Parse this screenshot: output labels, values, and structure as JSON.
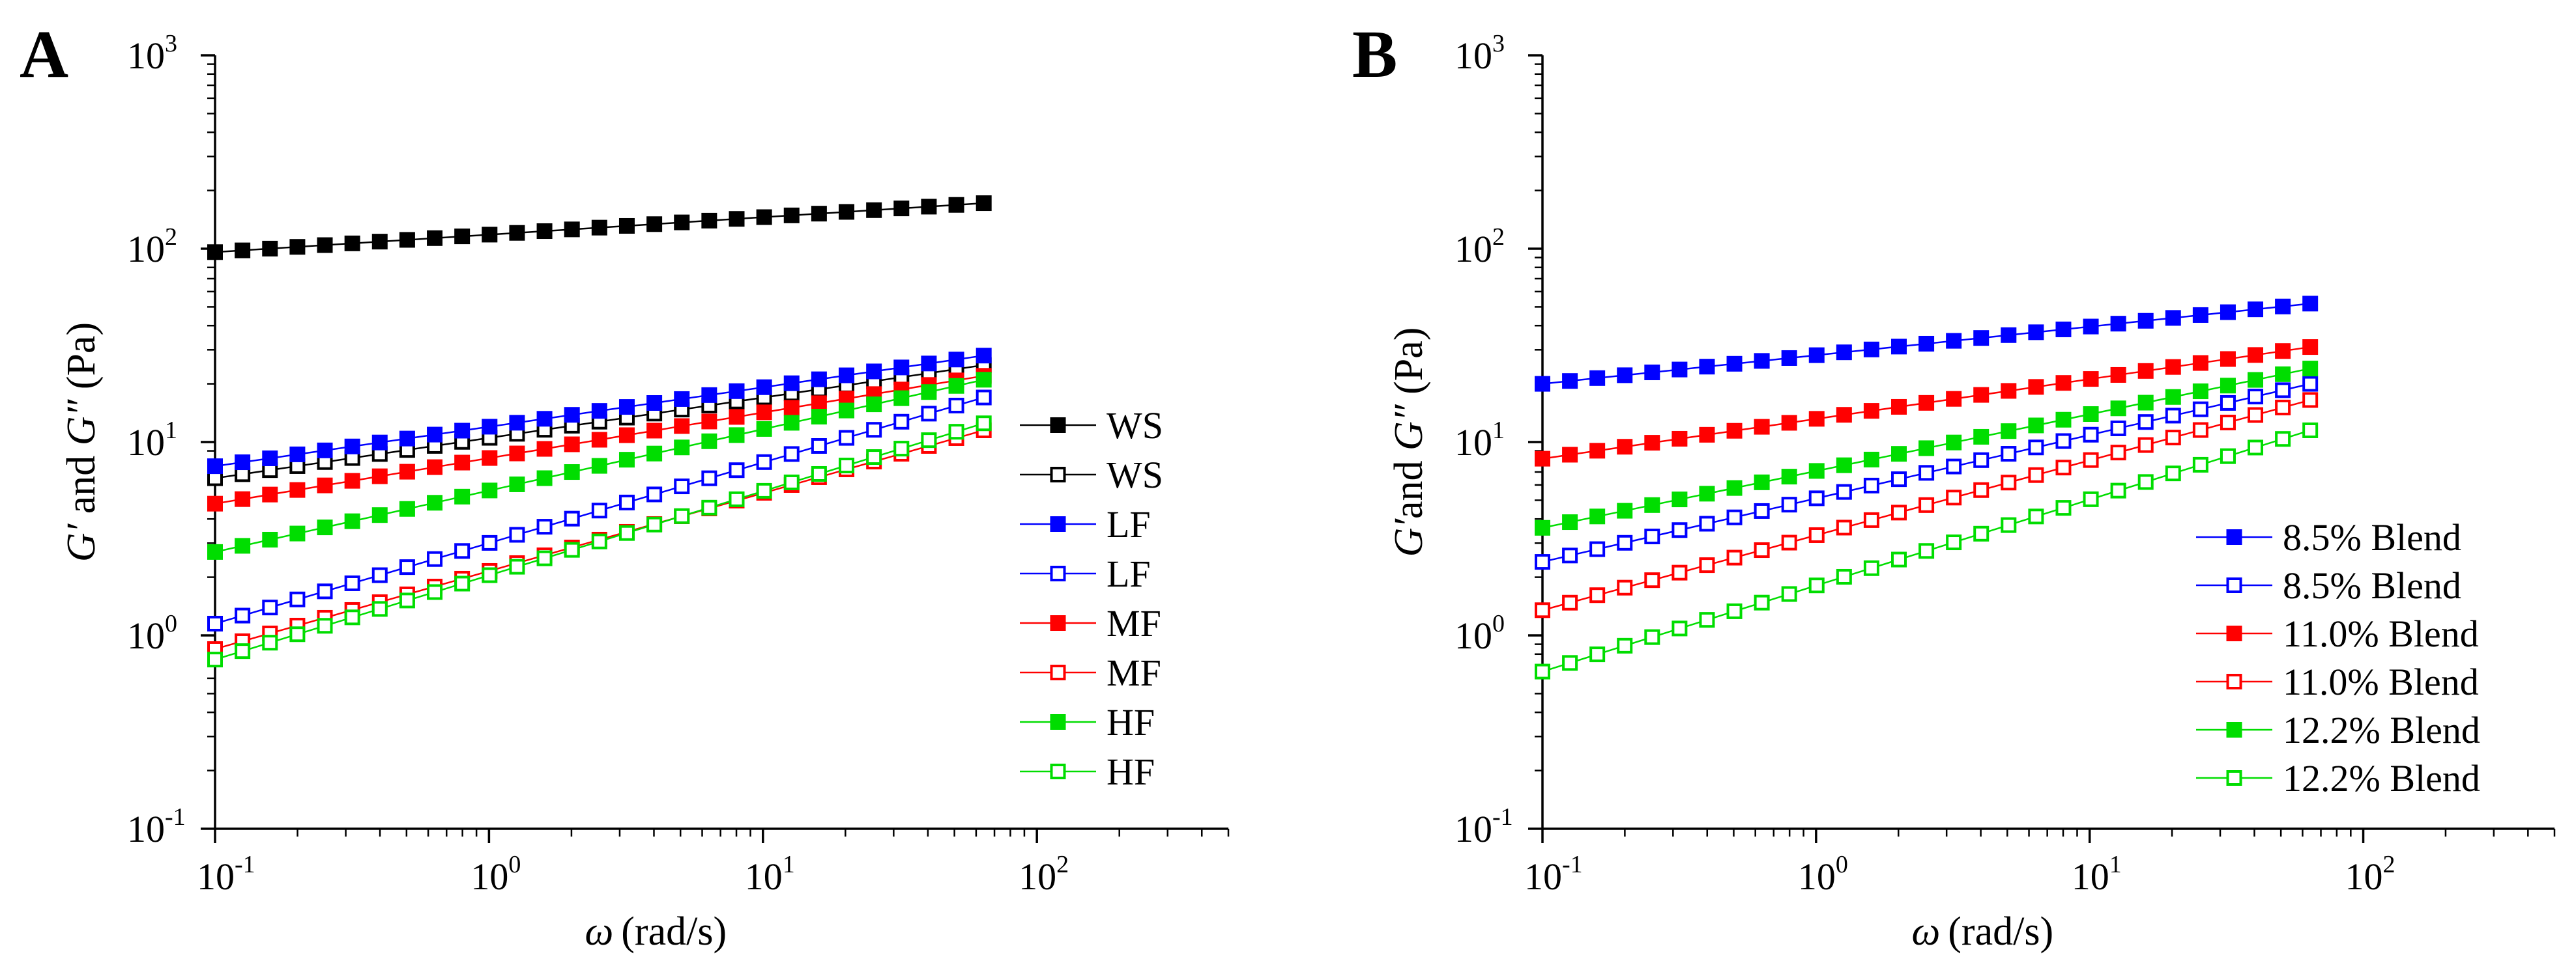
{
  "figure": {
    "panels": [
      "A",
      "B"
    ]
  },
  "chart_data": [
    {
      "type": "scatter",
      "panel_label": "A",
      "scale": "log-log",
      "xlabel_symbol": "ω",
      "xlabel_unit": "(rad/s)",
      "ylabel_g1": "G′",
      "ylabel_and": " and ",
      "ylabel_g2": "G″",
      "ylabel_unit": " (Pa)",
      "xlim": [
        0.1,
        500
      ],
      "ylim": [
        0.1,
        1000
      ],
      "x_ticks": [
        {
          "value": 0.1,
          "base": "10",
          "exp": "-1"
        },
        {
          "value": 1,
          "base": "10",
          "exp": "0"
        },
        {
          "value": 10,
          "base": "10",
          "exp": "1"
        },
        {
          "value": 100,
          "base": "10",
          "exp": "2"
        }
      ],
      "y_ticks": [
        {
          "value": 0.1,
          "base": "10",
          "exp": "-1"
        },
        {
          "value": 1,
          "base": "10",
          "exp": "0"
        },
        {
          "value": 10,
          "base": "10",
          "exp": "1"
        },
        {
          "value": 100,
          "base": "10",
          "exp": "2"
        },
        {
          "value": 1000,
          "base": "10",
          "exp": "3"
        }
      ],
      "x_start": 0.1,
      "x_end": 64,
      "n_points": 29,
      "legend_position": "right",
      "series": [
        {
          "name": "WS",
          "color": "#000000",
          "filled": true,
          "y_start": 96,
          "y_end": 172
        },
        {
          "name": "WS",
          "color": "#000000",
          "filled": false,
          "y_start": 6.5,
          "y_end": 25
        },
        {
          "name": "LF",
          "color": "#0000ff",
          "filled": true,
          "y_start": 7.5,
          "y_end": 28
        },
        {
          "name": "LF",
          "color": "#0000ff",
          "filled": false,
          "y_start": 1.15,
          "y_end": 17
        },
        {
          "name": "MF",
          "color": "#ff0000",
          "filled": true,
          "y_start": 4.8,
          "y_end": 22
        },
        {
          "name": "MF",
          "color": "#ff0000",
          "filled": false,
          "y_start": 0.85,
          "y_end": 11.5
        },
        {
          "name": "HF",
          "color": "#00dd00",
          "filled": true,
          "y_start": 2.7,
          "y_end": 21
        },
        {
          "name": "HF",
          "color": "#00dd00",
          "filled": false,
          "y_start": 0.75,
          "y_end": 12.5
        }
      ]
    },
    {
      "type": "scatter",
      "panel_label": "B",
      "scale": "log-log",
      "xlabel_symbol": "ω",
      "xlabel_unit": "(rad/s)",
      "ylabel_g1": "G′",
      "ylabel_and": "and ",
      "ylabel_g2": "G″",
      "ylabel_unit": " (Pa)",
      "xlim": [
        0.1,
        500
      ],
      "ylim": [
        0.1,
        1000
      ],
      "x_ticks": [
        {
          "value": 0.1,
          "base": "10",
          "exp": "-1"
        },
        {
          "value": 1,
          "base": "10",
          "exp": "0"
        },
        {
          "value": 10,
          "base": "10",
          "exp": "1"
        },
        {
          "value": 100,
          "base": "10",
          "exp": "2"
        }
      ],
      "y_ticks": [
        {
          "value": 0.1,
          "base": "10",
          "exp": "-1"
        },
        {
          "value": 1,
          "base": "10",
          "exp": "0"
        },
        {
          "value": 10,
          "base": "10",
          "exp": "1"
        },
        {
          "value": 100,
          "base": "10",
          "exp": "2"
        },
        {
          "value": 1000,
          "base": "10",
          "exp": "3"
        }
      ],
      "x_start": 0.1,
      "x_end": 64,
      "n_points": 29,
      "legend_position": "bottom-right",
      "series": [
        {
          "name": "8.5% Blend",
          "color": "#0000ff",
          "filled": true,
          "y_start": 20,
          "y_end": 52
        },
        {
          "name": "8.5% Blend",
          "color": "#0000ff",
          "filled": false,
          "y_start": 2.4,
          "y_end": 20
        },
        {
          "name": "11.0% Blend",
          "color": "#ff0000",
          "filled": true,
          "y_start": 8.2,
          "y_end": 31
        },
        {
          "name": "11.0% Blend",
          "color": "#ff0000",
          "filled": false,
          "y_start": 1.35,
          "y_end": 16.5
        },
        {
          "name": "12.2% Blend",
          "color": "#00dd00",
          "filled": true,
          "y_start": 3.6,
          "y_end": 24
        },
        {
          "name": "12.2% Blend",
          "color": "#00dd00",
          "filled": false,
          "y_start": 0.65,
          "y_end": 11.5
        }
      ]
    }
  ]
}
